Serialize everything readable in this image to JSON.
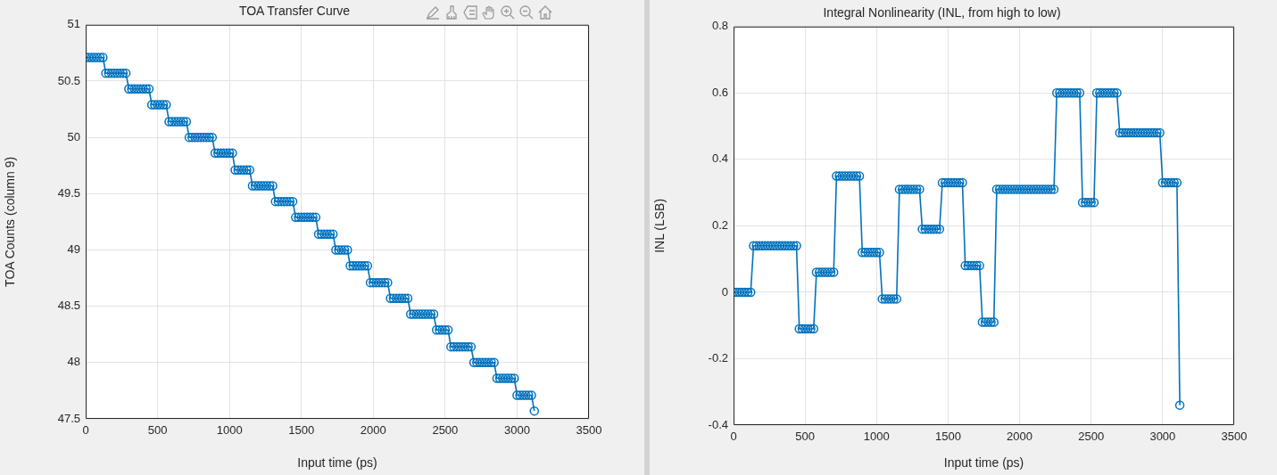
{
  "chart_data": [
    {
      "type": "line",
      "title": "TOA Transfer Curve",
      "xlabel": "Input time (ps)",
      "ylabel": "TOA Counts (column 9)",
      "color": "#0072bd",
      "marker": "circle",
      "grid": true,
      "xlim": [
        0,
        3500
      ],
      "xticks": [
        0,
        500,
        1000,
        1500,
        2000,
        2500,
        3000,
        3500
      ],
      "ylim": [
        47.5,
        51
      ],
      "yticks": [
        47.5,
        48,
        48.5,
        49,
        49.5,
        50,
        50.5,
        51
      ],
      "x": [
        0,
        20,
        40,
        60,
        80,
        100,
        120,
        140,
        160,
        180,
        200,
        220,
        240,
        260,
        280,
        300,
        320,
        340,
        360,
        380,
        400,
        420,
        440,
        460,
        480,
        500,
        520,
        540,
        560,
        580,
        600,
        620,
        640,
        660,
        680,
        700,
        720,
        740,
        760,
        780,
        800,
        820,
        840,
        860,
        880,
        900,
        920,
        940,
        960,
        980,
        1000,
        1020,
        1040,
        1060,
        1080,
        1100,
        1120,
        1140,
        1160,
        1180,
        1200,
        1220,
        1240,
        1260,
        1280,
        1300,
        1320,
        1340,
        1360,
        1380,
        1400,
        1420,
        1440,
        1460,
        1480,
        1500,
        1520,
        1540,
        1560,
        1580,
        1600,
        1620,
        1640,
        1660,
        1680,
        1700,
        1720,
        1740,
        1760,
        1780,
        1800,
        1820,
        1840,
        1860,
        1880,
        1900,
        1920,
        1940,
        1960,
        1980,
        2000,
        2020,
        2040,
        2060,
        2080,
        2100,
        2120,
        2140,
        2160,
        2180,
        2200,
        2220,
        2240,
        2260,
        2280,
        2300,
        2320,
        2340,
        2360,
        2380,
        2400,
        2420,
        2440,
        2460,
        2480,
        2500,
        2520,
        2540,
        2560,
        2580,
        2600,
        2620,
        2640,
        2660,
        2680,
        2700,
        2720,
        2740,
        2760,
        2780,
        2800,
        2820,
        2840,
        2860,
        2880,
        2900,
        2920,
        2940,
        2960,
        2980,
        3000,
        3020,
        3040,
        3060,
        3080,
        3100,
        3120
      ],
      "values": [
        50.71,
        50.71,
        50.71,
        50.71,
        50.71,
        50.71,
        50.71,
        50.57,
        50.57,
        50.57,
        50.57,
        50.57,
        50.57,
        50.57,
        50.57,
        50.43,
        50.43,
        50.43,
        50.43,
        50.43,
        50.43,
        50.43,
        50.43,
        50.29,
        50.29,
        50.29,
        50.29,
        50.29,
        50.29,
        50.14,
        50.14,
        50.14,
        50.14,
        50.14,
        50.14,
        50.14,
        50.0,
        50.0,
        50.0,
        50.0,
        50.0,
        50.0,
        50.0,
        50.0,
        50.0,
        49.86,
        49.86,
        49.86,
        49.86,
        49.86,
        49.86,
        49.86,
        49.71,
        49.71,
        49.71,
        49.71,
        49.71,
        49.71,
        49.57,
        49.57,
        49.57,
        49.57,
        49.57,
        49.57,
        49.57,
        49.57,
        49.43,
        49.43,
        49.43,
        49.43,
        49.43,
        49.43,
        49.43,
        49.29,
        49.29,
        49.29,
        49.29,
        49.29,
        49.29,
        49.29,
        49.29,
        49.14,
        49.14,
        49.14,
        49.14,
        49.14,
        49.14,
        49.0,
        49.0,
        49.0,
        49.0,
        49.0,
        48.86,
        48.86,
        48.86,
        48.86,
        48.86,
        48.86,
        48.86,
        48.71,
        48.71,
        48.71,
        48.71,
        48.71,
        48.71,
        48.71,
        48.57,
        48.57,
        48.57,
        48.57,
        48.57,
        48.57,
        48.57,
        48.43,
        48.43,
        48.43,
        48.43,
        48.43,
        48.43,
        48.43,
        48.43,
        48.43,
        48.29,
        48.29,
        48.29,
        48.29,
        48.29,
        48.14,
        48.14,
        48.14,
        48.14,
        48.14,
        48.14,
        48.14,
        48.14,
        48.0,
        48.0,
        48.0,
        48.0,
        48.0,
        48.0,
        48.0,
        48.0,
        47.86,
        47.86,
        47.86,
        47.86,
        47.86,
        47.86,
        47.86,
        47.71,
        47.71,
        47.71,
        47.71,
        47.71,
        47.71,
        47.57
      ]
    },
    {
      "type": "line",
      "title": "Integral Nonlinearity (INL, from high to low)",
      "xlabel": "Input time (ps)",
      "ylabel": "INL (LSB)",
      "color": "#0072bd",
      "marker": "circle",
      "grid": true,
      "xlim": [
        0,
        3500
      ],
      "xticks": [
        0,
        500,
        1000,
        1500,
        2000,
        2500,
        3000,
        3500
      ],
      "ylim": [
        -0.4,
        0.8
      ],
      "yticks": [
        -0.4,
        -0.2,
        0,
        0.2,
        0.4,
        0.6,
        0.8
      ],
      "x": [
        0,
        20,
        40,
        60,
        80,
        100,
        120,
        140,
        160,
        180,
        200,
        220,
        240,
        260,
        280,
        300,
        320,
        340,
        360,
        380,
        400,
        420,
        440,
        460,
        480,
        500,
        520,
        540,
        560,
        580,
        600,
        620,
        640,
        660,
        680,
        700,
        720,
        740,
        760,
        780,
        800,
        820,
        840,
        860,
        880,
        900,
        920,
        940,
        960,
        980,
        1000,
        1020,
        1040,
        1060,
        1080,
        1100,
        1120,
        1140,
        1160,
        1180,
        1200,
        1220,
        1240,
        1260,
        1280,
        1300,
        1320,
        1340,
        1360,
        1380,
        1400,
        1420,
        1440,
        1460,
        1480,
        1500,
        1520,
        1540,
        1560,
        1580,
        1600,
        1620,
        1640,
        1660,
        1680,
        1700,
        1720,
        1740,
        1760,
        1780,
        1800,
        1820,
        1840,
        1860,
        1880,
        1900,
        1920,
        1940,
        1960,
        1980,
        2000,
        2020,
        2040,
        2060,
        2080,
        2100,
        2120,
        2140,
        2160,
        2180,
        2200,
        2220,
        2240,
        2260,
        2280,
        2300,
        2320,
        2340,
        2360,
        2380,
        2400,
        2420,
        2440,
        2460,
        2480,
        2500,
        2520,
        2540,
        2560,
        2580,
        2600,
        2620,
        2640,
        2660,
        2680,
        2700,
        2720,
        2740,
        2760,
        2780,
        2800,
        2820,
        2840,
        2860,
        2880,
        2900,
        2920,
        2940,
        2960,
        2980,
        3000,
        3020,
        3040,
        3060,
        3080,
        3100,
        3120
      ],
      "values": [
        0,
        0,
        0,
        0,
        0,
        0,
        0,
        0.14,
        0.14,
        0.14,
        0.14,
        0.14,
        0.14,
        0.14,
        0.14,
        0.14,
        0.14,
        0.14,
        0.14,
        0.14,
        0.14,
        0.14,
        0.14,
        -0.11,
        -0.11,
        -0.11,
        -0.11,
        -0.11,
        -0.11,
        0.06,
        0.06,
        0.06,
        0.06,
        0.06,
        0.06,
        0.06,
        0.35,
        0.35,
        0.35,
        0.35,
        0.35,
        0.35,
        0.35,
        0.35,
        0.35,
        0.12,
        0.12,
        0.12,
        0.12,
        0.12,
        0.12,
        0.12,
        -0.02,
        -0.02,
        -0.02,
        -0.02,
        -0.02,
        -0.02,
        0.31,
        0.31,
        0.31,
        0.31,
        0.31,
        0.31,
        0.31,
        0.31,
        0.19,
        0.19,
        0.19,
        0.19,
        0.19,
        0.19,
        0.19,
        0.33,
        0.33,
        0.33,
        0.33,
        0.33,
        0.33,
        0.33,
        0.33,
        0.08,
        0.08,
        0.08,
        0.08,
        0.08,
        0.08,
        -0.09,
        -0.09,
        -0.09,
        -0.09,
        -0.09,
        0.31,
        0.31,
        0.31,
        0.31,
        0.31,
        0.31,
        0.31,
        0.31,
        0.31,
        0.31,
        0.31,
        0.31,
        0.31,
        0.31,
        0.31,
        0.31,
        0.31,
        0.31,
        0.31,
        0.31,
        0.31,
        0.6,
        0.6,
        0.6,
        0.6,
        0.6,
        0.6,
        0.6,
        0.6,
        0.6,
        0.27,
        0.27,
        0.27,
        0.27,
        0.27,
        0.6,
        0.6,
        0.6,
        0.6,
        0.6,
        0.6,
        0.6,
        0.6,
        0.48,
        0.48,
        0.48,
        0.48,
        0.48,
        0.48,
        0.48,
        0.48,
        0.48,
        0.48,
        0.48,
        0.48,
        0.48,
        0.48,
        0.48,
        0.33,
        0.33,
        0.33,
        0.33,
        0.33,
        0.33,
        -0.34
      ]
    }
  ]
}
